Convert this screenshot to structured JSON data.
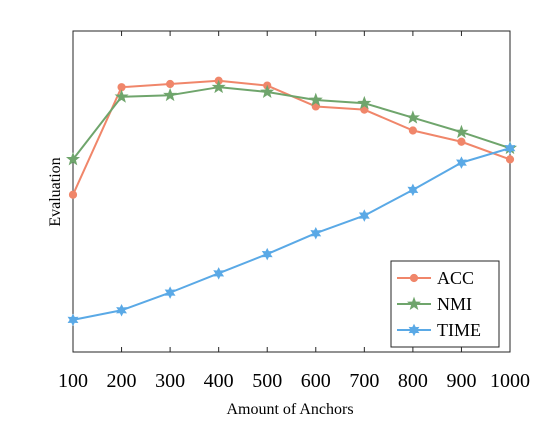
{
  "chart_data": {
    "type": "line",
    "title": "",
    "xlabel": "Amount of Anchors",
    "ylabel": "Evaluation",
    "x": [
      100,
      200,
      300,
      400,
      500,
      600,
      700,
      800,
      900,
      1000
    ],
    "xlim": [
      100,
      1000
    ],
    "ylim": [
      0,
      1
    ],
    "y_ticks_shown": false,
    "grid": false,
    "legend": {
      "position": "bottom-right"
    },
    "series": [
      {
        "name": "ACC",
        "color": "#f0866a",
        "marker": "circle",
        "values": [
          0.49,
          0.825,
          0.835,
          0.845,
          0.83,
          0.765,
          0.755,
          0.69,
          0.655,
          0.6
        ]
      },
      {
        "name": "NMI",
        "color": "#6fa56c",
        "marker": "star",
        "values": [
          0.6,
          0.795,
          0.8,
          0.825,
          0.81,
          0.785,
          0.775,
          0.73,
          0.685,
          0.635
        ]
      },
      {
        "name": "TIME",
        "color": "#5aa9e6",
        "marker": "hexagram",
        "values": [
          0.1,
          0.13,
          0.185,
          0.245,
          0.305,
          0.37,
          0.425,
          0.505,
          0.59,
          0.635
        ]
      }
    ]
  }
}
